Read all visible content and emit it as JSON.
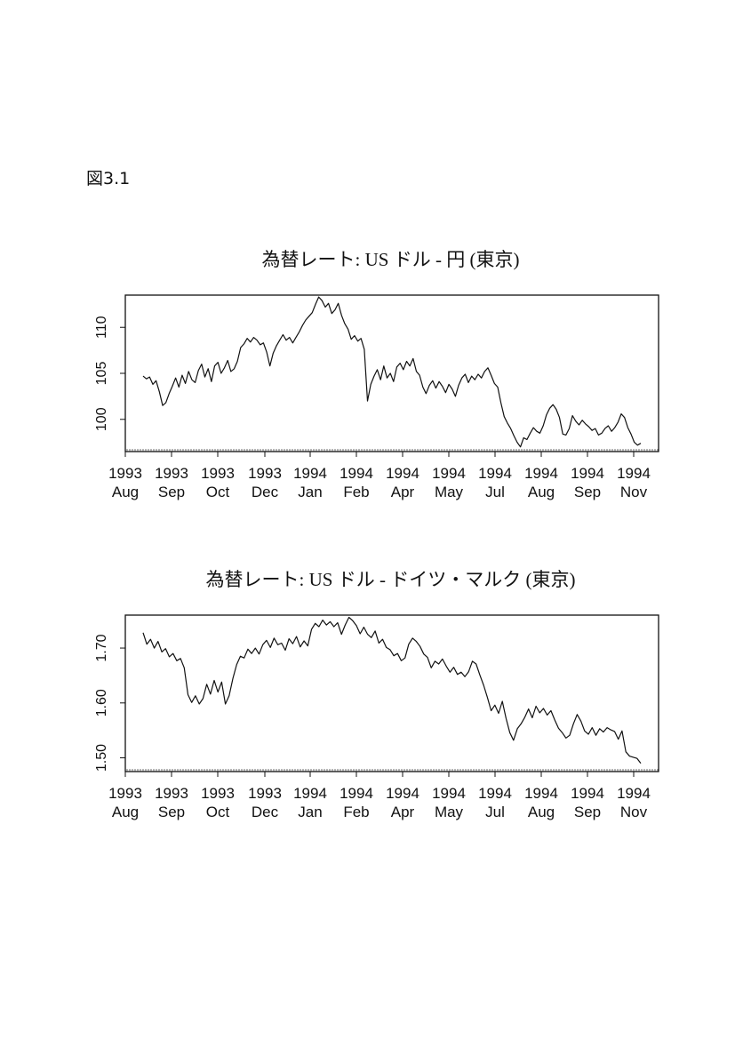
{
  "figure_label": "図3.1",
  "chart_data": [
    {
      "type": "line",
      "title": "為替レート: US ドル - 円 (東京)",
      "xlabel": "",
      "ylabel": "",
      "grid": false,
      "legend": "none",
      "ylim": [
        96.5,
        113.5
      ],
      "yticks": [
        "100",
        "105",
        "110"
      ],
      "x_tick_labels": [
        {
          "year": "1993",
          "month": "Aug"
        },
        {
          "year": "1993",
          "month": "Sep"
        },
        {
          "year": "1993",
          "month": "Oct"
        },
        {
          "year": "1993",
          "month": "Dec"
        },
        {
          "year": "1994",
          "month": "Jan"
        },
        {
          "year": "1994",
          "month": "Feb"
        },
        {
          "year": "1994",
          "month": "Apr"
        },
        {
          "year": "1994",
          "month": "May"
        },
        {
          "year": "1994",
          "month": "Jul"
        },
        {
          "year": "1994",
          "month": "Aug"
        },
        {
          "year": "1994",
          "month": "Sep"
        },
        {
          "year": "1994",
          "month": "Nov"
        }
      ],
      "series": [
        {
          "values": [
            104.7,
            104.4,
            104.6,
            103.8,
            104.2,
            103.0,
            101.5,
            101.8,
            102.8,
            103.6,
            104.5,
            103.5,
            104.8,
            103.9,
            105.2,
            104.3,
            104.0,
            105.3,
            106.0,
            104.6,
            105.5,
            104.1,
            105.8,
            106.2,
            105.0,
            105.6,
            106.4,
            105.2,
            105.5,
            106.3,
            107.8,
            108.2,
            108.8,
            108.4,
            108.9,
            108.6,
            108.1,
            108.3,
            107.3,
            105.8,
            107.2,
            108.0,
            108.6,
            109.2,
            108.6,
            108.9,
            108.3,
            108.9,
            109.5,
            110.2,
            110.8,
            111.2,
            111.6,
            112.5,
            113.3,
            112.9,
            112.2,
            112.6,
            111.5,
            111.9,
            112.6,
            111.3,
            110.4,
            109.8,
            108.7,
            109.1,
            108.5,
            108.8,
            107.6,
            102.0,
            103.8,
            104.7,
            105.4,
            104.3,
            105.8,
            104.5,
            105.0,
            104.1,
            105.7,
            106.1,
            105.4,
            106.3,
            105.8,
            106.6,
            105.2,
            104.8,
            103.5,
            102.8,
            103.7,
            104.2,
            103.4,
            104.1,
            103.6,
            102.9,
            103.8,
            103.3,
            102.5,
            103.7,
            104.5,
            104.9,
            104.0,
            104.7,
            104.3,
            104.9,
            104.5,
            105.2,
            105.6,
            104.8,
            103.9,
            103.5,
            101.8,
            100.3,
            99.6,
            99.0,
            98.2,
            97.5,
            97.0,
            98.0,
            97.8,
            98.5,
            99.1,
            98.7,
            98.5,
            99.3,
            100.5,
            101.2,
            101.6,
            101.1,
            100.2,
            98.4,
            98.3,
            99.0,
            100.4,
            99.8,
            99.4,
            99.9,
            99.5,
            99.2,
            98.8,
            99.0,
            98.3,
            98.5,
            99.0,
            99.3,
            98.7,
            99.1,
            99.7,
            100.6,
            100.2,
            99.1,
            98.4,
            97.5,
            97.2,
            97.4
          ]
        }
      ]
    },
    {
      "type": "line",
      "title": "為替レート: US ドル - ドイツ・マルク (東京)",
      "xlabel": "",
      "ylabel": "",
      "grid": false,
      "legend": "none",
      "ylim": [
        1.475,
        1.76
      ],
      "yticks": [
        "1.50",
        "1.60",
        "1.70"
      ],
      "x_tick_labels": [
        {
          "year": "1993",
          "month": "Aug"
        },
        {
          "year": "1993",
          "month": "Sep"
        },
        {
          "year": "1993",
          "month": "Oct"
        },
        {
          "year": "1993",
          "month": "Dec"
        },
        {
          "year": "1994",
          "month": "Jan"
        },
        {
          "year": "1994",
          "month": "Feb"
        },
        {
          "year": "1994",
          "month": "Apr"
        },
        {
          "year": "1994",
          "month": "May"
        },
        {
          "year": "1994",
          "month": "Jul"
        },
        {
          "year": "1994",
          "month": "Aug"
        },
        {
          "year": "1994",
          "month": "Sep"
        },
        {
          "year": "1994",
          "month": "Nov"
        }
      ],
      "series": [
        {
          "values": [
            1.728,
            1.707,
            1.716,
            1.7,
            1.712,
            1.693,
            1.699,
            1.684,
            1.69,
            1.677,
            1.681,
            1.664,
            1.615,
            1.601,
            1.613,
            1.598,
            1.608,
            1.634,
            1.616,
            1.641,
            1.62,
            1.638,
            1.598,
            1.613,
            1.645,
            1.67,
            1.685,
            1.682,
            1.698,
            1.69,
            1.7,
            1.689,
            1.706,
            1.714,
            1.701,
            1.718,
            1.706,
            1.709,
            1.696,
            1.717,
            1.708,
            1.721,
            1.702,
            1.713,
            1.704,
            1.734,
            1.745,
            1.739,
            1.751,
            1.742,
            1.748,
            1.739,
            1.746,
            1.725,
            1.742,
            1.756,
            1.75,
            1.741,
            1.726,
            1.738,
            1.725,
            1.719,
            1.731,
            1.709,
            1.716,
            1.701,
            1.697,
            1.686,
            1.69,
            1.677,
            1.682,
            1.707,
            1.718,
            1.712,
            1.703,
            1.689,
            1.683,
            1.664,
            1.676,
            1.671,
            1.68,
            1.667,
            1.656,
            1.665,
            1.652,
            1.656,
            1.648,
            1.657,
            1.676,
            1.671,
            1.651,
            1.632,
            1.61,
            1.586,
            1.596,
            1.581,
            1.603,
            1.572,
            1.546,
            1.532,
            1.553,
            1.562,
            1.574,
            1.589,
            1.573,
            1.594,
            1.582,
            1.59,
            1.578,
            1.586,
            1.569,
            1.554,
            1.546,
            1.536,
            1.541,
            1.562,
            1.579,
            1.567,
            1.549,
            1.543,
            1.555,
            1.541,
            1.553,
            1.547,
            1.555,
            1.551,
            1.548,
            1.534,
            1.549,
            1.511,
            1.503,
            1.501,
            1.499,
            1.49
          ]
        }
      ]
    }
  ]
}
